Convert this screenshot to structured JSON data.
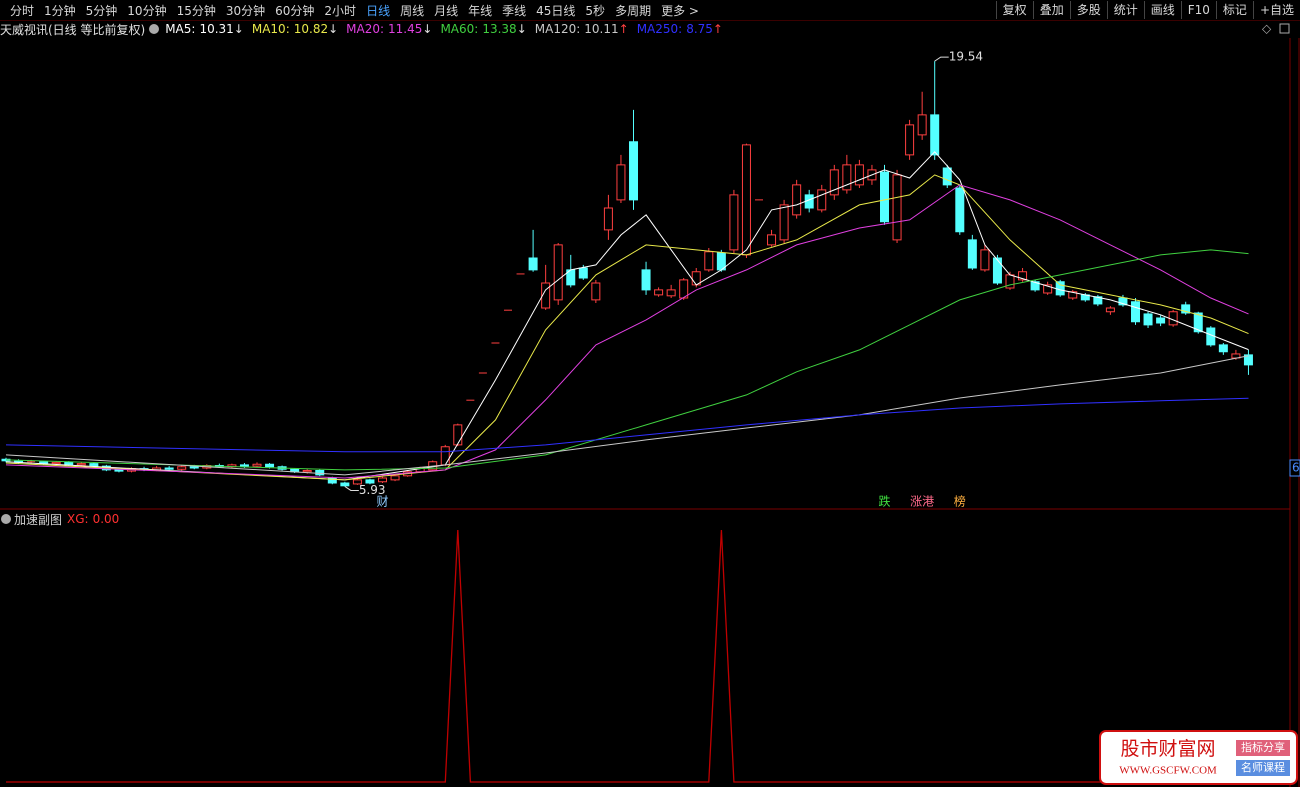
{
  "toolbar": {
    "periods": [
      "分时",
      "1分钟",
      "5分钟",
      "10分钟",
      "15分钟",
      "30分钟",
      "60分钟",
      "2小时",
      "日线",
      "周线",
      "月线",
      "年线",
      "季线",
      "45日线",
      "5秒",
      "多周期",
      "更多 >"
    ],
    "active_index": 8,
    "tools": [
      "复权",
      "叠加",
      "多股",
      "统计",
      "画线",
      "F10",
      "标记",
      "+自选"
    ]
  },
  "chart_data": {
    "type": "candlestick",
    "title": "天威视讯(日线 等比前复权)",
    "up_color": "#ff4040",
    "down_color": "#54ffff",
    "ylim": [
      5.24,
      20.28
    ],
    "open": [
      6.8,
      6.74,
      6.7,
      6.72,
      6.66,
      6.7,
      6.62,
      6.66,
      6.58,
      6.46,
      6.42,
      6.5,
      6.46,
      6.52,
      6.48,
      6.56,
      6.52,
      6.6,
      6.56,
      6.62,
      6.58,
      6.64,
      6.56,
      6.48,
      6.4,
      6.44,
      6.2,
      6.04,
      6.01,
      6.14,
      6.08,
      6.14,
      6.27,
      6.4,
      6.46,
      6.62,
      7.26,
      8.69,
      9.56,
      10.52,
      11.57,
      12.73,
      13.24,
      11.64,
      11.9,
      12.86,
      12.92,
      11.9,
      14.14,
      15.1,
      16.96,
      12.86,
      12.06,
      12.03,
      11.96,
      12.38,
      12.86,
      13.4,
      13.5,
      13.34,
      15.1,
      13.66,
      13.82,
      14.62,
      15.26,
      14.78,
      15.26,
      15.42,
      15.58,
      15.74,
      15.99,
      13.82,
      16.54,
      17.18,
      17.82,
      16.12,
      15.48,
      13.82,
      12.86,
      13.24,
      12.28,
      12.54,
      12.48,
      12.12,
      12.48,
      11.96,
      12.06,
      12.0,
      11.52,
      11.96,
      11.84,
      11.45,
      11.32,
      11.1,
      11.74,
      11.48,
      11.0,
      10.46,
      10.04,
      10.14
    ],
    "high": [
      6.85,
      6.8,
      6.78,
      6.76,
      6.74,
      6.74,
      6.7,
      6.7,
      6.62,
      6.5,
      6.54,
      6.56,
      6.58,
      6.58,
      6.6,
      6.62,
      6.64,
      6.66,
      6.66,
      6.68,
      6.7,
      6.68,
      6.6,
      6.52,
      6.48,
      6.48,
      6.24,
      6.08,
      6.18,
      6.18,
      6.24,
      6.3,
      6.44,
      6.56,
      6.76,
      7.26,
      7.94,
      8.69,
      9.56,
      10.52,
      11.57,
      12.73,
      14.14,
      13.02,
      13.72,
      13.34,
      13.02,
      12.54,
      15.26,
      16.54,
      17.98,
      13.12,
      12.3,
      12.38,
      12.6,
      12.92,
      13.56,
      13.5,
      15.42,
      16.9,
      15.1,
      14.14,
      15.1,
      15.74,
      15.42,
      15.58,
      16.22,
      16.54,
      16.38,
      16.22,
      16.22,
      16.06,
      17.66,
      18.56,
      19.54,
      16.22,
      15.58,
      13.98,
      13.66,
      13.34,
      12.8,
      12.92,
      12.54,
      12.48,
      12.54,
      12.22,
      12.12,
      12.06,
      11.7,
      12.06,
      11.96,
      11.52,
      11.4,
      11.58,
      11.84,
      11.52,
      11.06,
      10.52,
      10.3,
      10.3
    ],
    "low": [
      6.7,
      6.66,
      6.65,
      6.62,
      6.62,
      6.58,
      6.58,
      6.54,
      6.42,
      6.38,
      6.38,
      6.42,
      6.42,
      6.44,
      6.44,
      6.48,
      6.48,
      6.52,
      6.52,
      6.52,
      6.54,
      6.5,
      6.44,
      6.36,
      6.34,
      6.26,
      6.0,
      5.93,
      5.98,
      6.0,
      6.04,
      6.1,
      6.24,
      6.36,
      6.42,
      6.58,
      7.22,
      8.69,
      9.56,
      10.52,
      11.57,
      12.73,
      12.8,
      11.58,
      11.74,
      12.3,
      12.54,
      11.8,
      13.82,
      15.0,
      14.78,
      12.06,
      12.0,
      11.96,
      11.9,
      12.3,
      12.8,
      12.8,
      13.4,
      13.24,
      15.1,
      13.6,
      13.72,
      14.5,
      14.7,
      14.7,
      15.1,
      15.3,
      15.48,
      15.58,
      14.3,
      13.72,
      16.38,
      17.02,
      16.38,
      15.48,
      13.98,
      12.86,
      12.8,
      12.38,
      12.22,
      12.48,
      12.16,
      12.06,
      12.0,
      11.9,
      11.84,
      11.7,
      11.42,
      11.68,
      11.1,
      11.0,
      11.06,
      11.04,
      11.42,
      10.82,
      10.4,
      10.14,
      9.98,
      9.5
    ],
    "close": [
      6.75,
      6.7,
      6.72,
      6.66,
      6.7,
      6.62,
      6.66,
      6.58,
      6.46,
      6.42,
      6.5,
      6.46,
      6.52,
      6.48,
      6.56,
      6.52,
      6.6,
      6.56,
      6.62,
      6.58,
      6.64,
      6.56,
      6.48,
      6.4,
      6.44,
      6.3,
      6.04,
      5.95,
      6.14,
      6.04,
      6.2,
      6.27,
      6.4,
      6.52,
      6.72,
      7.2,
      7.9,
      8.69,
      9.56,
      10.52,
      11.57,
      12.73,
      12.86,
      12.44,
      13.66,
      12.38,
      12.6,
      12.44,
      14.84,
      16.22,
      15.1,
      12.22,
      12.22,
      12.22,
      12.54,
      12.8,
      13.44,
      12.86,
      15.26,
      16.86,
      15.1,
      13.98,
      14.94,
      15.58,
      14.84,
      15.42,
      16.06,
      16.22,
      16.22,
      16.06,
      14.4,
      15.9,
      17.5,
      17.82,
      16.54,
      15.58,
      14.08,
      12.92,
      13.5,
      12.44,
      12.7,
      12.8,
      12.22,
      12.38,
      12.06,
      12.16,
      11.9,
      11.77,
      11.64,
      11.74,
      11.2,
      11.1,
      11.16,
      11.52,
      11.48,
      10.88,
      10.46,
      10.24,
      10.17,
      9.82
    ],
    "ma": [
      {
        "label": "MA5:",
        "value": 10.31,
        "arrow": "↓",
        "arrow_color": "#e0e0e0",
        "color": "#ffffff",
        "x": [
          0,
          27,
          35,
          39,
          43,
          45,
          47,
          49,
          51,
          53,
          55,
          57,
          59,
          61,
          63,
          65,
          68,
          70,
          72,
          74,
          76,
          78,
          80,
          84,
          88,
          92,
          96,
          99
        ],
        "values": [
          6.72,
          6.14,
          6.62,
          9.34,
          12.22,
          12.86,
          13.02,
          13.98,
          14.62,
          13.5,
          12.38,
          12.86,
          13.5,
          14.78,
          14.94,
          15.26,
          15.74,
          16.06,
          15.8,
          16.64,
          15.74,
          13.66,
          12.7,
          12.22,
          11.9,
          11.42,
          10.78,
          10.31
        ]
      },
      {
        "label": "MA10:",
        "value": 10.82,
        "arrow": "↓",
        "arrow_color": "#e0e0e0",
        "color": "#e8e84a",
        "x": [
          0,
          27,
          35,
          39,
          43,
          47,
          51,
          55,
          59,
          63,
          68,
          72,
          74,
          76,
          80,
          84,
          88,
          92,
          96,
          99
        ],
        "values": [
          6.68,
          6.14,
          6.46,
          8.06,
          10.94,
          12.7,
          13.66,
          13.5,
          13.34,
          13.82,
          14.94,
          15.26,
          15.9,
          15.58,
          13.82,
          12.38,
          12.06,
          11.74,
          11.32,
          10.82
        ]
      },
      {
        "label": "MA20:",
        "value": 11.45,
        "arrow": "↓",
        "arrow_color": "#e0e0e0",
        "color": "#e040e0",
        "x": [
          0,
          27,
          35,
          39,
          43,
          47,
          51,
          55,
          59,
          63,
          68,
          72,
          76,
          80,
          84,
          88,
          92,
          96,
          99
        ],
        "values": [
          6.62,
          6.2,
          6.46,
          7.1,
          8.7,
          10.46,
          11.26,
          12.22,
          12.86,
          13.66,
          14.2,
          14.46,
          15.58,
          15.1,
          14.46,
          13.66,
          12.86,
          11.96,
          11.45
        ]
      },
      {
        "label": "MA60:",
        "value": 13.38,
        "arrow": "↓",
        "arrow_color": "#e0e0e0",
        "color": "#40d040",
        "x": [
          0,
          27,
          35,
          43,
          51,
          55,
          59,
          63,
          68,
          72,
          76,
          80,
          84,
          88,
          92,
          96,
          99
        ],
        "values": [
          6.78,
          6.46,
          6.52,
          6.94,
          7.9,
          8.38,
          8.86,
          9.6,
          10.3,
          11.1,
          11.9,
          12.38,
          12.7,
          13.02,
          13.34,
          13.5,
          13.38
        ]
      },
      {
        "label": "MA120:",
        "value": 10.11,
        "arrow": "↑",
        "arrow_color": "#ff4040",
        "color": "#c8c8c8",
        "x": [
          0,
          27,
          35,
          43,
          51,
          59,
          68,
          76,
          84,
          92,
          99
        ],
        "values": [
          6.94,
          6.3,
          6.62,
          7.0,
          7.42,
          7.8,
          8.22,
          8.76,
          9.18,
          9.56,
          10.11
        ]
      },
      {
        "label": "MA250:",
        "value": 8.75,
        "arrow": "↑",
        "arrow_color": "#ff4040",
        "color": "#3030ff",
        "x": [
          0,
          27,
          35,
          43,
          51,
          59,
          68,
          76,
          84,
          92,
          99
        ],
        "values": [
          7.26,
          7.04,
          7.04,
          7.26,
          7.58,
          7.9,
          8.22,
          8.44,
          8.57,
          8.67,
          8.75
        ]
      }
    ],
    "high_mark": {
      "value": 19.54,
      "index": 74
    },
    "low_mark": {
      "value": 5.93,
      "index": 27
    },
    "events": [
      {
        "text": "财",
        "index": 30,
        "color": "#8ecbff"
      },
      {
        "text": "跌",
        "index": 70,
        "color": "#40e040"
      },
      {
        "text": "涨港",
        "index": 73,
        "color": "#ff6a8a"
      },
      {
        "text": "榜",
        "index": 76,
        "color": "#ffb040"
      }
    ],
    "edge_label": "6"
  },
  "sub_chart": {
    "type": "line",
    "title": "加速副图",
    "series_label": "XG:",
    "value": 0,
    "value_label": "0.00",
    "color": "#c00000",
    "ylim": [
      0,
      1
    ],
    "values": [
      0,
      0,
      0,
      0,
      0,
      0,
      0,
      0,
      0,
      0,
      0,
      0,
      0,
      0,
      0,
      0,
      0,
      0,
      0,
      0,
      0,
      0,
      0,
      0,
      0,
      0,
      0,
      0,
      0,
      0,
      0,
      0,
      0,
      0,
      0,
      0,
      1,
      0,
      0,
      0,
      0,
      0,
      0,
      0,
      0,
      0,
      0,
      0,
      0,
      0,
      0,
      0,
      0,
      0,
      0,
      0,
      0,
      1,
      0,
      0,
      0,
      0,
      0,
      0,
      0,
      0,
      0,
      0,
      0,
      0,
      0,
      0,
      0,
      0,
      0,
      0,
      0,
      0,
      0,
      0,
      0,
      0,
      0,
      0,
      0,
      0,
      0,
      0,
      0,
      0,
      0,
      0,
      0,
      0,
      0,
      0,
      0,
      0,
      0,
      0
    ]
  },
  "watermark": {
    "name": "股市财富网",
    "url": "WWW.GSCFW.COM",
    "tag1": "指标分享",
    "tag2": "名师课程"
  }
}
